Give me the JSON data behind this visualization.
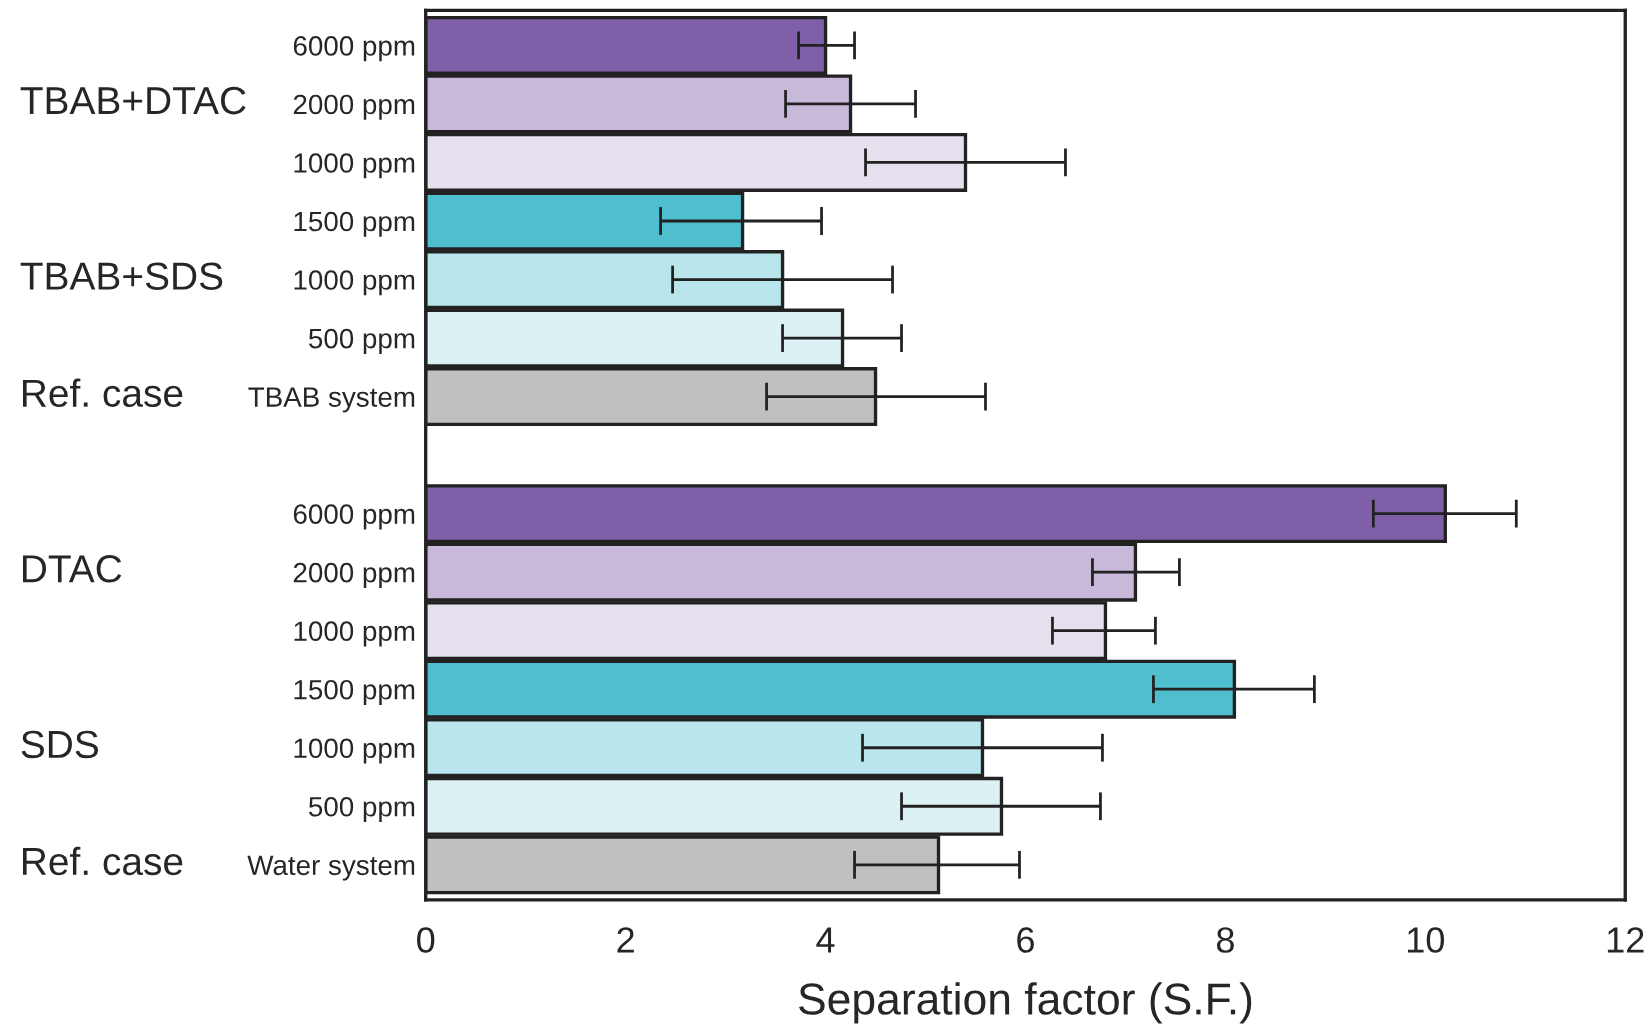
{
  "chart_data": {
    "type": "bar",
    "orientation": "horizontal",
    "xlabel": "Separation factor (S.F.)",
    "categories": [
      "6000 ppm",
      "2000 ppm",
      "1000 ppm",
      "1500 ppm",
      "1000 ppm",
      "500 ppm",
      "TBAB system",
      null,
      "6000 ppm",
      "2000 ppm",
      "1000 ppm",
      "1500 ppm",
      "1000 ppm",
      "500 ppm",
      "Water system"
    ],
    "values": [
      4.0,
      4.25,
      5.4,
      3.17,
      3.57,
      4.17,
      4.5,
      null,
      10.2,
      7.1,
      6.8,
      8.09,
      5.57,
      5.76,
      5.13
    ],
    "errors": [
      [
        3.73,
        4.29
      ],
      [
        3.6,
        4.9
      ],
      [
        4.4,
        6.4
      ],
      [
        2.35,
        3.96
      ],
      [
        2.47,
        4.67
      ],
      [
        3.57,
        4.76
      ],
      [
        3.41,
        5.6
      ],
      null,
      [
        9.48,
        10.91
      ],
      [
        6.67,
        7.54
      ],
      [
        6.27,
        7.3
      ],
      [
        7.28,
        8.89
      ],
      [
        4.37,
        6.77
      ],
      [
        4.76,
        6.75
      ],
      [
        4.29,
        5.94
      ]
    ],
    "colors": [
      "#7f5fa8",
      "#c8b8da",
      "#e5dfee",
      "#4fbfcf",
      "#b9e5ec",
      "#dcf1f4",
      "#c0c0c0",
      null,
      "#7f5fa8",
      "#c8b8da",
      "#e5dfee",
      "#4fbfcf",
      "#b9e5ec",
      "#dcf1f4",
      "#c0c0c0"
    ],
    "xlim": [
      0,
      12
    ],
    "xticks": [
      0,
      2,
      4,
      6,
      8,
      10,
      12
    ],
    "grid": false,
    "annotations": [
      "TBAB+DTAC",
      "TBAB+SDS",
      "Ref. case",
      "DTAC",
      "SDS",
      "Ref. case"
    ]
  }
}
